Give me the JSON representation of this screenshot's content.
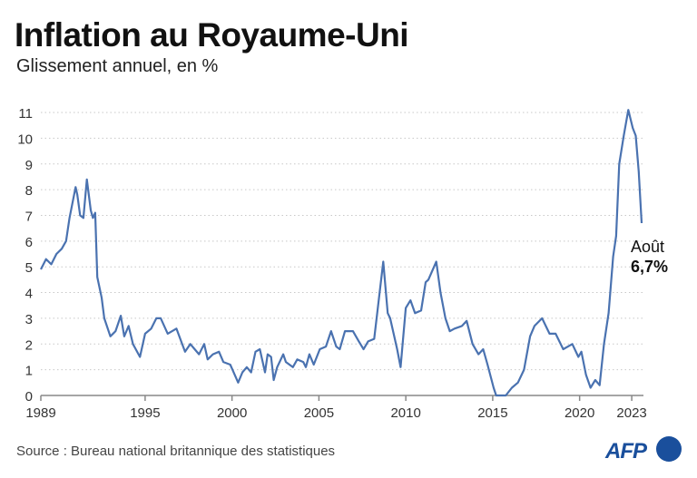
{
  "title": "Inflation au Royaume-Uni",
  "subtitle": "Glissement annuel, en %",
  "source": "Source : Bureau national britannique des statistiques",
  "logo": "AFP",
  "colors": {
    "line": "#4a72b0",
    "grid": "#c8c8c8",
    "axis": "#888888",
    "logo": "#1a4f9c"
  },
  "chart_data": {
    "type": "line",
    "title": "Inflation au Royaume-Uni",
    "subtitle": "Glissement annuel, en %",
    "xlim": [
      1989,
      2023.6
    ],
    "ylim": [
      0,
      11
    ],
    "grid": true,
    "x_ticks": [
      1989,
      1995,
      2000,
      2005,
      2010,
      2015,
      2020,
      2023
    ],
    "y_ticks": [
      0,
      1,
      2,
      3,
      4,
      5,
      6,
      7,
      8,
      9,
      10,
      11
    ],
    "annotation": {
      "label": "Août",
      "value_label": "6,7%",
      "x": 2023.57,
      "y": 6.7
    },
    "series": [
      {
        "x": [
          1989.0,
          1989.3,
          1989.6,
          1989.9,
          1990.2,
          1990.45,
          1990.65,
          1991.0,
          1991.1,
          1991.26,
          1991.45,
          1991.65,
          1991.87,
          1992.0,
          1992.13,
          1992.25,
          1992.5,
          1992.65,
          1993.0,
          1993.3,
          1993.6,
          1993.8,
          1994.05,
          1994.3,
          1994.7,
          1995.0,
          1995.35,
          1995.65,
          1995.9,
          1996.3,
          1996.8,
          1997.3,
          1997.6,
          1997.85,
          1998.1,
          1998.4,
          1998.6,
          1998.9,
          1999.25,
          1999.5,
          1999.9,
          2000.35,
          2000.6,
          2000.85,
          2001.1,
          2001.35,
          2001.6,
          2001.9,
          2002.05,
          2002.25,
          2002.4,
          2002.6,
          2002.95,
          2003.1,
          2003.5,
          2003.75,
          2004.1,
          2004.25,
          2004.45,
          2004.7,
          2005.05,
          2005.4,
          2005.7,
          2006.0,
          2006.2,
          2006.5,
          2006.96,
          2007.3,
          2007.57,
          2007.83,
          2008.18,
          2008.7,
          2008.96,
          2009.1,
          2009.5,
          2009.7,
          2010.0,
          2010.27,
          2010.53,
          2010.88,
          2011.14,
          2011.3,
          2011.75,
          2012.0,
          2012.28,
          2012.53,
          2012.8,
          2013.23,
          2013.5,
          2013.84,
          2014.18,
          2014.45,
          2014.7,
          2015.05,
          2015.2,
          2015.75,
          2016.1,
          2016.45,
          2016.8,
          2017.15,
          2017.4,
          2017.84,
          2018.27,
          2018.62,
          2019.06,
          2019.58,
          2019.93,
          2020.1,
          2020.37,
          2020.63,
          2020.9,
          2021.15,
          2021.4,
          2021.67,
          2021.93,
          2022.1,
          2022.28,
          2022.54,
          2022.8,
          2023.06,
          2023.23,
          2023.4,
          2023.57
        ],
        "values": [
          4.9,
          5.3,
          5.1,
          5.5,
          5.7,
          6.0,
          6.9,
          8.1,
          7.8,
          7.0,
          6.9,
          8.4,
          7.2,
          6.9,
          7.1,
          4.6,
          3.8,
          3.0,
          2.3,
          2.5,
          3.1,
          2.3,
          2.7,
          2.0,
          1.5,
          2.4,
          2.6,
          3.0,
          3.0,
          2.4,
          2.6,
          1.7,
          2.0,
          1.8,
          1.6,
          2.0,
          1.4,
          1.6,
          1.7,
          1.3,
          1.2,
          0.5,
          0.9,
          1.1,
          0.9,
          1.7,
          1.8,
          0.9,
          1.6,
          1.5,
          0.6,
          1.1,
          1.6,
          1.3,
          1.1,
          1.4,
          1.3,
          1.1,
          1.6,
          1.2,
          1.8,
          1.9,
          2.5,
          1.9,
          1.8,
          2.5,
          2.5,
          2.1,
          1.8,
          2.1,
          2.2,
          5.2,
          3.2,
          3.0,
          1.8,
          1.1,
          3.4,
          3.7,
          3.2,
          3.3,
          4.4,
          4.5,
          5.2,
          4.0,
          3.0,
          2.5,
          2.6,
          2.7,
          2.9,
          2.0,
          1.6,
          1.8,
          1.2,
          0.3,
          0.0,
          0.0,
          0.3,
          0.5,
          1.0,
          2.3,
          2.7,
          3.0,
          2.4,
          2.4,
          1.8,
          2.0,
          1.5,
          1.7,
          0.8,
          0.3,
          0.6,
          0.4,
          2.0,
          3.2,
          5.4,
          6.2,
          9.0,
          10.1,
          11.1,
          10.4,
          10.1,
          8.7,
          6.7
        ]
      }
    ]
  }
}
